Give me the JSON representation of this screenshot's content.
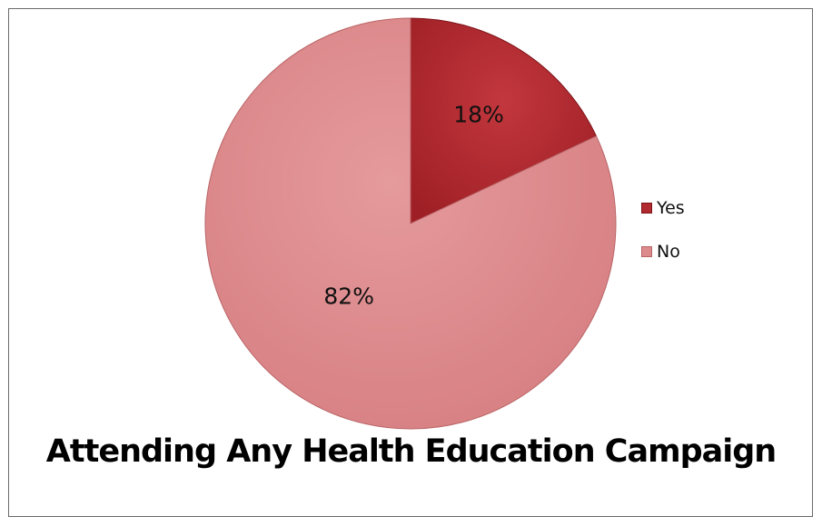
{
  "chart_data": {
    "type": "pie",
    "title": "Attending Any Health Education Campaign",
    "slices": [
      {
        "label": "Yes",
        "value": 18,
        "display": "18%",
        "color": "#b02a30"
      },
      {
        "label": "No",
        "value": 82,
        "display": "82%",
        "color": "#dd8a8c"
      }
    ],
    "legend_position": "right"
  }
}
